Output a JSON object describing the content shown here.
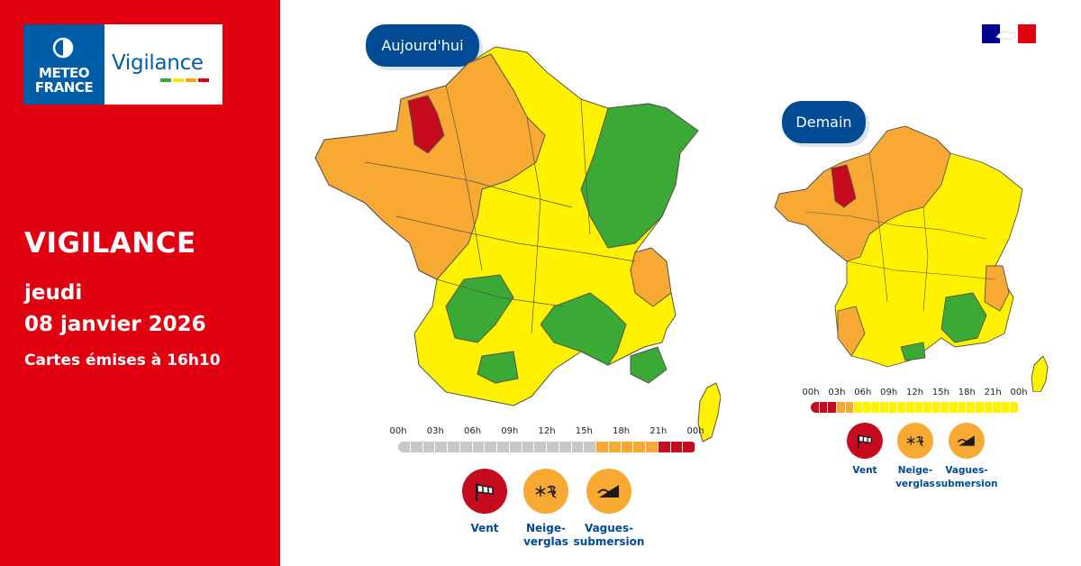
{
  "brand": {
    "logo_line1": "METEO",
    "logo_line2": "FRANCE",
    "product": "Vigilance",
    "product_bar_colors": [
      "#3aa935",
      "#ffe500",
      "#f7a600",
      "#e1000f"
    ]
  },
  "sidebar": {
    "title": "VIGILANCE",
    "day": "jeudi",
    "date": "08 janvier 2026",
    "issued": "Cartes émises à 16h10"
  },
  "colors": {
    "red": "#c60b1f",
    "orange": "#f7a933",
    "yellow": "#fff100",
    "green": "#3aa935",
    "navy": "#004b93",
    "grey": "#c8c8c8"
  },
  "today": {
    "label": "Aujourd'hui",
    "timeline": {
      "ticks": [
        "00h",
        "03h",
        "06h",
        "09h",
        "12h",
        "15h",
        "18h",
        "21h",
        "00h"
      ],
      "levels": [
        "grey",
        "grey",
        "grey",
        "grey",
        "grey",
        "grey",
        "grey",
        "grey",
        "grey",
        "grey",
        "grey",
        "grey",
        "grey",
        "grey",
        "grey",
        "grey",
        "grey",
        "grey",
        "grey",
        "grey",
        "grey",
        "grey",
        "grey",
        "grey",
        "grey",
        "grey",
        "grey",
        "grey",
        "grey",
        "grey",
        "grey",
        "grey",
        "grey",
        "grey",
        "grey",
        "grey",
        "grey",
        "grey",
        "grey",
        "grey",
        "grey",
        "grey",
        "grey",
        "grey",
        "grey",
        "grey",
        "grey",
        "grey",
        "grey",
        "grey",
        "grey",
        "grey",
        "grey",
        "grey",
        "grey",
        "grey",
        "grey",
        "grey",
        "grey",
        "grey",
        "grey",
        "grey",
        "grey",
        "grey",
        "orange",
        "orange",
        "orange",
        "orange",
        "orange",
        "orange",
        "orange",
        "orange",
        "orange",
        "orange",
        "orange",
        "orange",
        "orange",
        "orange",
        "orange",
        "orange",
        "orange",
        "orange",
        "orange",
        "orange",
        "red",
        "red",
        "red",
        "red",
        "red",
        "red",
        "red",
        "red",
        "red",
        "red",
        "red",
        "red"
      ]
    },
    "hazards": [
      {
        "name": "Vent",
        "level": "red",
        "icon": "wind-sock-icon"
      },
      {
        "name": "Neige-verglas",
        "line1": "Neige-",
        "line2": "verglas",
        "level": "orange",
        "icon": "snow-ice-icon"
      },
      {
        "name": "Vagues-submersion",
        "line1": "Vagues-",
        "line2": "submersion",
        "level": "orange",
        "icon": "waves-submersion-icon"
      }
    ]
  },
  "tomorrow": {
    "label": "Demain",
    "timeline": {
      "ticks": [
        "00h",
        "03h",
        "06h",
        "09h",
        "12h",
        "15h",
        "18h",
        "21h",
        "00h"
      ],
      "levels": [
        "red",
        "red",
        "red",
        "red",
        "red",
        "red",
        "red",
        "red",
        "red",
        "red",
        "red",
        "red",
        "orange",
        "orange",
        "orange",
        "orange",
        "orange",
        "orange",
        "orange",
        "orange",
        "yellow",
        "yellow",
        "yellow",
        "yellow",
        "yellow",
        "yellow",
        "yellow",
        "yellow",
        "yellow",
        "yellow",
        "yellow",
        "yellow",
        "yellow",
        "yellow",
        "yellow",
        "yellow",
        "yellow",
        "yellow",
        "yellow",
        "yellow",
        "yellow",
        "yellow",
        "yellow",
        "yellow",
        "yellow",
        "yellow",
        "yellow",
        "yellow",
        "yellow",
        "yellow",
        "yellow",
        "yellow",
        "yellow",
        "yellow",
        "yellow",
        "yellow",
        "yellow",
        "yellow",
        "yellow",
        "yellow",
        "yellow",
        "yellow",
        "yellow",
        "yellow",
        "yellow",
        "yellow",
        "yellow",
        "yellow",
        "yellow",
        "yellow",
        "yellow",
        "yellow",
        "yellow",
        "yellow",
        "yellow",
        "yellow",
        "yellow",
        "yellow",
        "yellow",
        "yellow",
        "yellow",
        "yellow",
        "yellow",
        "yellow",
        "yellow",
        "yellow",
        "yellow",
        "yellow",
        "yellow",
        "yellow",
        "yellow",
        "yellow",
        "yellow",
        "yellow",
        "yellow",
        "yellow"
      ]
    },
    "hazards": [
      {
        "name": "Vent",
        "level": "red",
        "icon": "wind-sock-icon"
      },
      {
        "name": "Neige-verglas",
        "line1": "Neige-",
        "line2": "verglas",
        "level": "orange",
        "icon": "snow-ice-icon"
      },
      {
        "name": "Vagues-submersion",
        "line1": "Vagues-",
        "line2": "submersion",
        "level": "orange",
        "icon": "waves-submersion-icon"
      }
    ]
  }
}
